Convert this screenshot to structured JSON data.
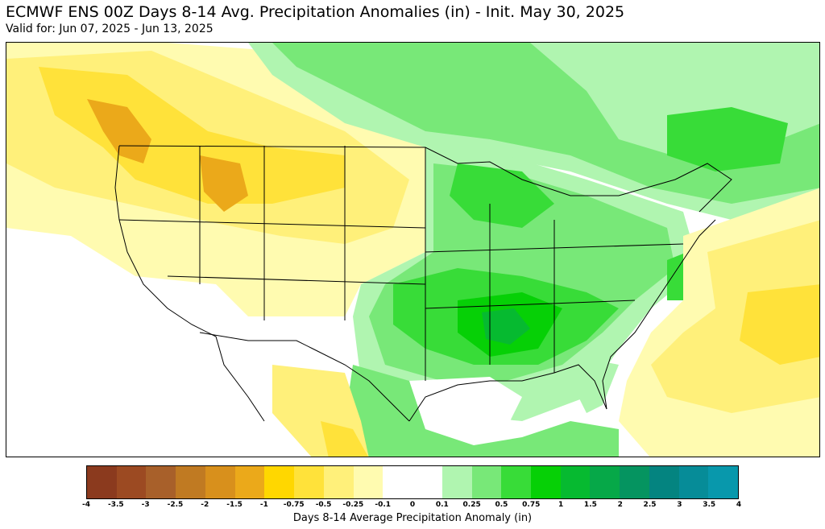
{
  "header": {
    "title": "ECMWF ENS 00Z Days 8-14 Avg. Precipitation Anomalies (in) - Init. May 30, 2025",
    "subtitle": "Valid for: Jun 07, 2025 - Jun 13, 2025"
  },
  "colorbar": {
    "label": "Days 8-14 Average Precipitation Anomaly (in)",
    "ticks": [
      "-4",
      "-3.5",
      "-3",
      "-2.5",
      "-2",
      "-1.5",
      "-1",
      "-0.75",
      "-0.5",
      "-0.25",
      "-0.1",
      "0",
      "0.1",
      "0.25",
      "0.5",
      "0.75",
      "1",
      "1.5",
      "2",
      "2.5",
      "3",
      "3.5",
      "4"
    ],
    "colors": [
      "#8b3a1e",
      "#9c4a22",
      "#a8602a",
      "#c07a22",
      "#d8901c",
      "#eba91a",
      "#ffd700",
      "#ffe23a",
      "#fff07a",
      "#fffbb0",
      "#ffffff",
      "#ffffff",
      "#b0f5b0",
      "#78e878",
      "#38dc38",
      "#06d006",
      "#06ba30",
      "#06a848",
      "#059460",
      "#048480",
      "#068c98",
      "#0898ac",
      "#10a8c6"
    ]
  },
  "map": {
    "colors": {
      "dry_light": "#fffbb0",
      "dry_mid": "#fff07a",
      "dry_strong": "#ffe23a",
      "dry_deep": "#eba91a",
      "wet_light": "#b0f5b0",
      "wet_mid": "#78e878",
      "wet_strong": "#38dc38",
      "wet_deep": "#06d006",
      "wet_deepest": "#06ba30",
      "water": "#ffffff",
      "border": "#000000"
    }
  }
}
